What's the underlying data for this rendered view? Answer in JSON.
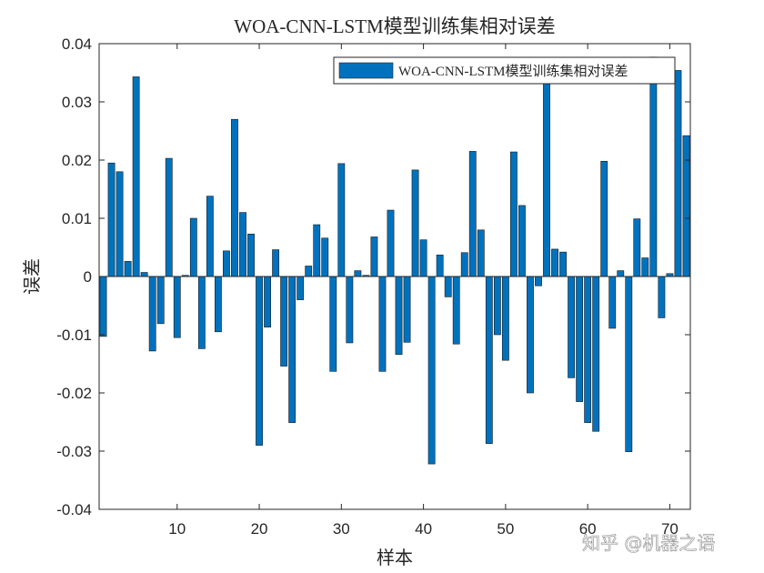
{
  "chart_data": {
    "type": "bar",
    "title": "WOA-CNN-LSTM模型训练集相对误差",
    "xlabel": "样本",
    "ylabel": "误差",
    "legend": {
      "label": "WOA-CNN-LSTM模型训练集相对误差",
      "placement": "top-right"
    },
    "xlim": [
      0.5,
      72.5
    ],
    "ylim": [
      -0.04,
      0.04
    ],
    "xticks": [
      10,
      20,
      30,
      40,
      50,
      60,
      70
    ],
    "yticks": [
      -0.04,
      -0.03,
      -0.02,
      -0.01,
      0,
      0.01,
      0.02,
      0.03,
      0.04
    ],
    "ytick_labels": [
      "-0.04",
      "-0.03",
      "-0.02",
      "-0.01",
      "0",
      "0.01",
      "0.02",
      "0.03",
      "0.04"
    ],
    "x": [
      1,
      2,
      3,
      4,
      5,
      6,
      7,
      8,
      9,
      10,
      11,
      12,
      13,
      14,
      15,
      16,
      17,
      18,
      19,
      20,
      21,
      22,
      23,
      24,
      25,
      26,
      27,
      28,
      29,
      30,
      31,
      32,
      33,
      34,
      35,
      36,
      37,
      38,
      39,
      40,
      41,
      42,
      43,
      44,
      45,
      46,
      47,
      48,
      49,
      50,
      51,
      52,
      53,
      54,
      55,
      56,
      57,
      58,
      59,
      60,
      61,
      62,
      63,
      64,
      65,
      66,
      67,
      68,
      69,
      70,
      71,
      72
    ],
    "values": [
      -0.0103,
      0.0195,
      0.018,
      0.0026,
      0.0343,
      0.0007,
      -0.0128,
      -0.0081,
      0.0203,
      -0.0105,
      0.0002,
      0.01,
      -0.0124,
      0.0138,
      -0.0095,
      0.0044,
      0.027,
      0.011,
      0.0073,
      -0.029,
      -0.0087,
      0.0046,
      -0.0154,
      -0.0251,
      -0.004,
      0.0018,
      0.0089,
      0.0066,
      -0.0163,
      0.0194,
      -0.0114,
      0.001,
      0.0002,
      0.0068,
      -0.0163,
      0.0114,
      -0.0134,
      -0.0113,
      0.0183,
      0.0063,
      -0.0322,
      0.0037,
      -0.0035,
      -0.0116,
      0.0041,
      0.0215,
      0.008,
      -0.0287,
      -0.01,
      -0.0144,
      0.0214,
      0.0122,
      -0.02,
      -0.0016,
      0.034,
      0.0047,
      0.0042,
      -0.0174,
      -0.0215,
      -0.0251,
      -0.0266,
      0.0198,
      -0.0089,
      0.001,
      -0.0301,
      0.0099,
      0.0032,
      0.0377,
      -0.0071,
      0.0005,
      0.0354,
      0.0242
    ],
    "bar_color": "#0072BD",
    "grid": false
  },
  "watermark": "知乎 @机器之语"
}
